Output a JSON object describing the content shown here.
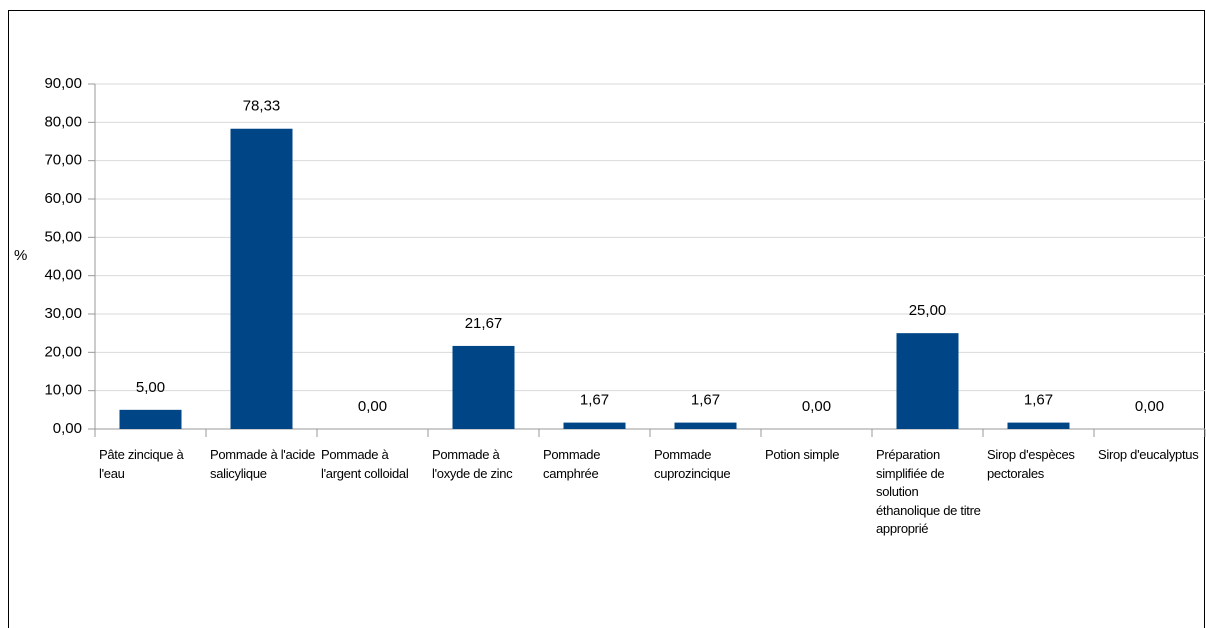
{
  "chart_data": {
    "type": "bar",
    "y_label": "%",
    "categories": [
      "Pâte zincique à l'eau",
      "Pommade à l'acide salicylique",
      "Pommade à l'argent colloidal",
      "Pommade à l'oxyde de zinc",
      "Pommade camphrée",
      "Pommade cuprozincique",
      "Potion simple",
      "Préparation simplifiée de solution éthanolique de titre approprié",
      "Sirop d'espèces pectorales",
      "Sirop d'eucalyptus"
    ],
    "values": [
      5.0,
      78.33,
      0.0,
      21.67,
      1.67,
      1.67,
      0.0,
      25.0,
      1.67,
      0.0
    ],
    "value_labels": [
      "5,00",
      "78,33",
      "0,00",
      "21,67",
      "1,67",
      "1,67",
      "0,00",
      "25,00",
      "1,67",
      "0,00"
    ],
    "color": "#004586",
    "ylim": [
      0,
      90
    ],
    "yticks": [
      {
        "value": 0,
        "label": "0,00"
      },
      {
        "value": 10,
        "label": "10,00"
      },
      {
        "value": 20,
        "label": "20,00"
      },
      {
        "value": 30,
        "label": "30,00"
      },
      {
        "value": 40,
        "label": "40,00"
      },
      {
        "value": 50,
        "label": "50,00"
      },
      {
        "value": 60,
        "label": "60,00"
      },
      {
        "value": 70,
        "label": "70,00"
      },
      {
        "value": 80,
        "label": "80,00"
      },
      {
        "value": 90,
        "label": "90,00"
      }
    ],
    "grid": true
  }
}
